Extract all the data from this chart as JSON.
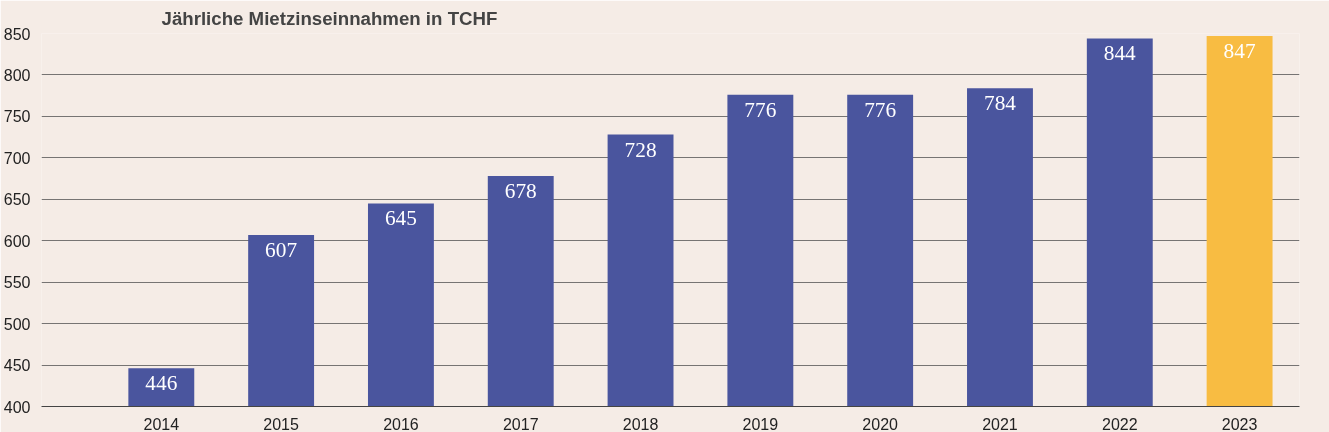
{
  "chart_data": {
    "type": "bar",
    "title": "Jährliche Mietzinseinnahmen in TCHF",
    "categories": [
      "2014",
      "2015",
      "2016",
      "2017",
      "2018",
      "2019",
      "2020",
      "2021",
      "2022",
      "2023"
    ],
    "values": [
      446,
      607,
      645,
      678,
      728,
      776,
      776,
      784,
      844,
      847
    ],
    "colors": [
      "#4a559e",
      "#4a559e",
      "#4a559e",
      "#4a559e",
      "#4a559e",
      "#4a559e",
      "#4a559e",
      "#4a559e",
      "#4a559e",
      "#f8bc42"
    ],
    "ylim": [
      400,
      850
    ],
    "yticks": [
      400,
      450,
      500,
      550,
      600,
      650,
      700,
      750,
      800,
      850
    ],
    "grid": "y",
    "data_labels": true
  }
}
